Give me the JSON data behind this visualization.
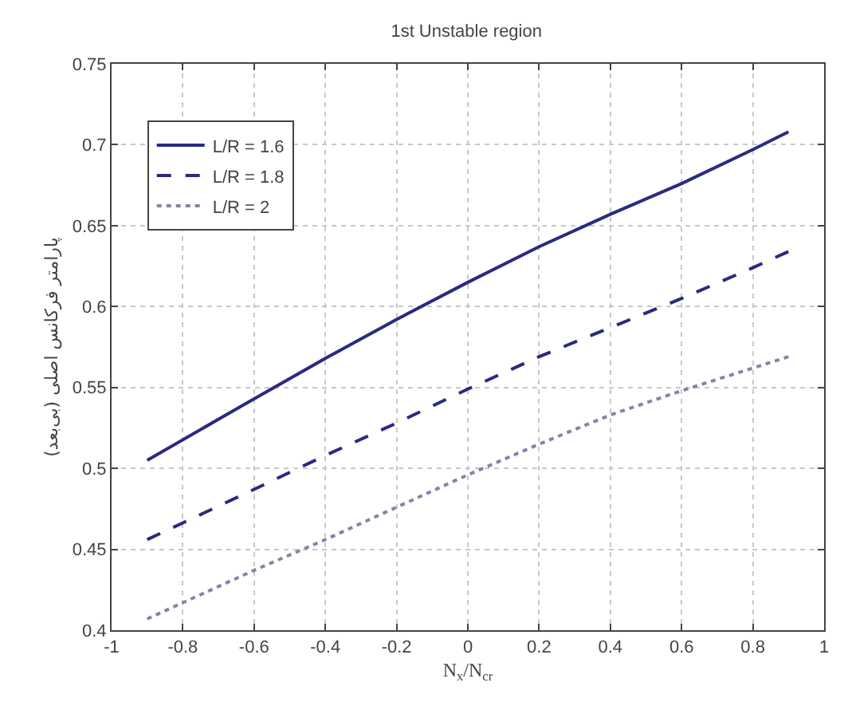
{
  "chart_data": {
    "type": "line",
    "title": "1st Unstable region",
    "xlabel": "N$_{x}$/N$_{cr}$",
    "ylabel": "پارامتر فرکانس اصلی (بی‌بعد)",
    "x": [
      -0.9,
      -0.6,
      -0.4,
      -0.2,
      0,
      0.2,
      0.4,
      0.6,
      0.8,
      0.9
    ],
    "series": [
      {
        "name": "L/R = 1.6",
        "color": "#2a2a80",
        "line_style": "solid",
        "values": [
          0.505,
          0.543,
          0.568,
          0.592,
          0.615,
          0.637,
          0.657,
          0.676,
          0.697,
          0.708
        ]
      },
      {
        "name": "L/R = 1.8",
        "color": "#2a2a80",
        "line_style": "dashed",
        "values": [
          0.456,
          0.487,
          0.508,
          0.528,
          0.549,
          0.569,
          0.587,
          0.605,
          0.624,
          0.634
        ]
      },
      {
        "name": "L/R = 2",
        "color": "#8484a8",
        "line_style": "dotted",
        "values": [
          0.407,
          0.437,
          0.456,
          0.476,
          0.496,
          0.515,
          0.533,
          0.548,
          0.562,
          0.569
        ]
      }
    ],
    "xlim": [
      -1,
      1
    ],
    "xticks": [
      -1,
      -0.8,
      -0.6,
      -0.4,
      -0.2,
      0,
      0.2,
      0.4,
      0.6,
      0.8,
      1
    ],
    "ylim": [
      0.4,
      0.75
    ],
    "yticks": [
      0.4,
      0.45,
      0.5,
      0.55,
      0.6,
      0.65,
      0.7,
      0.75
    ],
    "grid": true,
    "legend": "top left",
    "marker": "none"
  }
}
